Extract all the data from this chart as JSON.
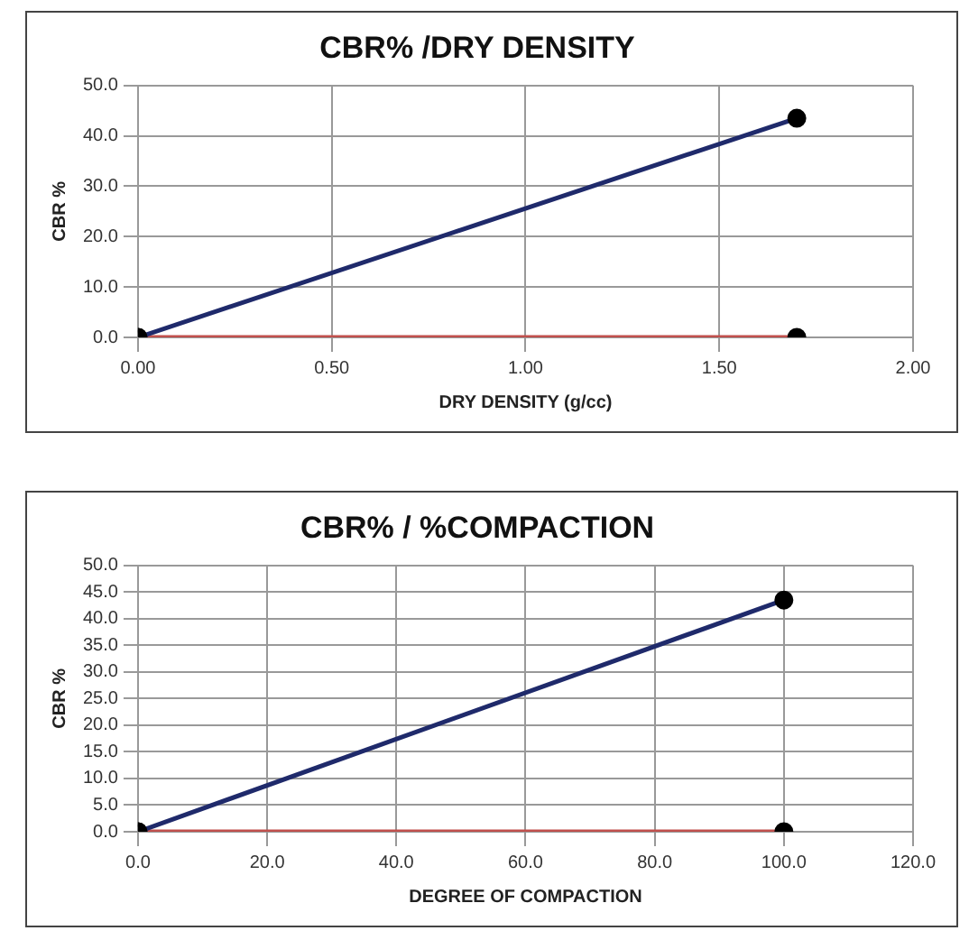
{
  "chart_data": [
    {
      "type": "line",
      "title": "CBR% /DRY DENSITY",
      "xlabel": "DRY DENSITY (g/cc)",
      "ylabel": "CBR %",
      "xlim": [
        0,
        2
      ],
      "ylim": [
        0,
        50
      ],
      "xticks": [
        {
          "value": 0,
          "label": "0.00"
        },
        {
          "value": 0.5,
          "label": "0.50"
        },
        {
          "value": 1,
          "label": "1.00"
        },
        {
          "value": 1.5,
          "label": "1.50"
        },
        {
          "value": 2,
          "label": "2.00"
        }
      ],
      "yticks": [
        {
          "value": 0,
          "label": "0.0"
        },
        {
          "value": 10,
          "label": "10.0"
        },
        {
          "value": 20,
          "label": "20.0"
        },
        {
          "value": 30,
          "label": "30.0"
        },
        {
          "value": 40,
          "label": "40.0"
        },
        {
          "value": 50,
          "label": "50.0"
        }
      ],
      "grid": true,
      "legend": false,
      "marker": "circle",
      "line_style": "solid",
      "series": [
        {
          "color": "#1f2a6b",
          "x": [
            0,
            1.7
          ],
          "values": [
            0,
            43.5
          ]
        },
        {
          "color": "#c0504d",
          "x": [
            0,
            1.7
          ],
          "values": [
            0,
            0
          ]
        }
      ]
    },
    {
      "type": "line",
      "title": "CBR% / %COMPACTION",
      "xlabel": "DEGREE OF COMPACTION",
      "ylabel": "CBR %",
      "xlim": [
        0,
        120
      ],
      "ylim": [
        0,
        50
      ],
      "xticks": [
        {
          "value": 0,
          "label": "0.0"
        },
        {
          "value": 20,
          "label": "20.0"
        },
        {
          "value": 40,
          "label": "40.0"
        },
        {
          "value": 60,
          "label": "60.0"
        },
        {
          "value": 80,
          "label": "80.0"
        },
        {
          "value": 100,
          "label": "100.0"
        },
        {
          "value": 120,
          "label": "120.0"
        }
      ],
      "yticks": [
        {
          "value": 0,
          "label": "0.0"
        },
        {
          "value": 5,
          "label": "5.0"
        },
        {
          "value": 10,
          "label": "10.0"
        },
        {
          "value": 15,
          "label": "15.0"
        },
        {
          "value": 20,
          "label": "20.0"
        },
        {
          "value": 25,
          "label": "25.0"
        },
        {
          "value": 30,
          "label": "30.0"
        },
        {
          "value": 35,
          "label": "35.0"
        },
        {
          "value": 40,
          "label": "40.0"
        },
        {
          "value": 45,
          "label": "45.0"
        },
        {
          "value": 50,
          "label": "50.0"
        }
      ],
      "grid": true,
      "legend": false,
      "marker": "circle",
      "line_style": "solid",
      "series": [
        {
          "color": "#1f2a6b",
          "x": [
            0,
            100
          ],
          "values": [
            0,
            43.5
          ]
        },
        {
          "color": "#c0504d",
          "x": [
            0,
            100
          ],
          "values": [
            0,
            0
          ]
        }
      ]
    }
  ]
}
